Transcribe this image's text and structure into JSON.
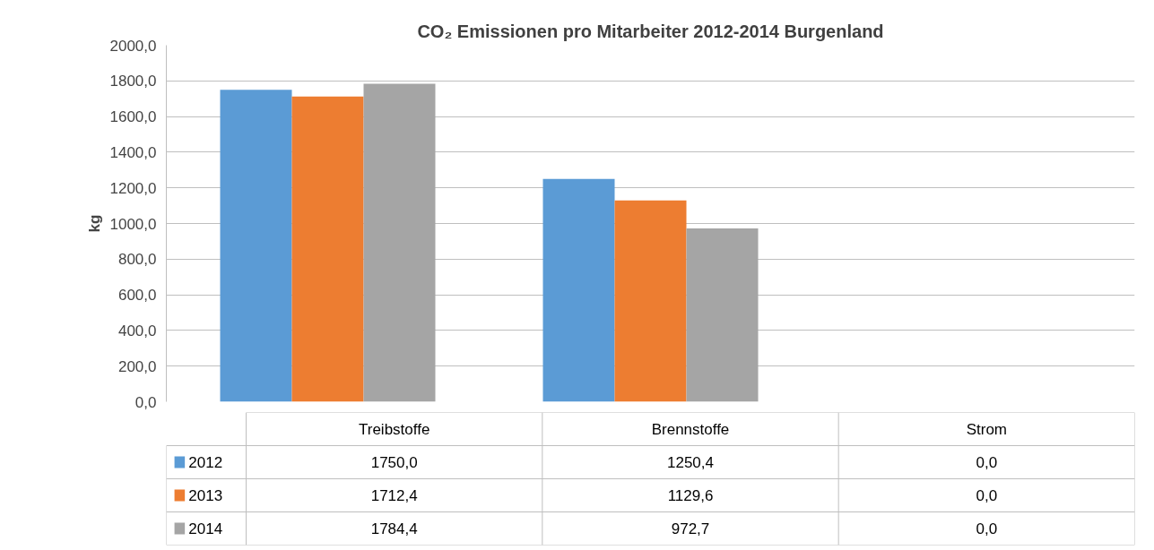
{
  "chart_data": {
    "type": "bar",
    "title": "CO₂ Emissionen pro Mitarbeiter 2012-2014 Burgenland",
    "ylabel": "kg",
    "categories": [
      "Treibstoffe",
      "Brennstoffe",
      "Strom"
    ],
    "series": [
      {
        "name": "2012",
        "color": "#5b9bd5",
        "values": [
          1750.0,
          1250.4,
          0.0
        ],
        "value_labels": [
          "1750,0",
          "1250,4",
          "0,0"
        ]
      },
      {
        "name": "2013",
        "color": "#ed7d31",
        "values": [
          1712.4,
          1129.6,
          0.0
        ],
        "value_labels": [
          "1712,4",
          "1129,6",
          "0,0"
        ]
      },
      {
        "name": "2014",
        "color": "#a5a5a5",
        "values": [
          1784.4,
          972.7,
          0.0
        ],
        "value_labels": [
          "1784,4",
          "972,7",
          "0,0"
        ]
      }
    ],
    "ylim": [
      0,
      2000
    ],
    "yticks": [
      {
        "value": 0,
        "label": "0,0"
      },
      {
        "value": 200,
        "label": "200,0"
      },
      {
        "value": 400,
        "label": "400,0"
      },
      {
        "value": 600,
        "label": "600,0"
      },
      {
        "value": 800,
        "label": "800,0"
      },
      {
        "value": 1000,
        "label": "1000,0"
      },
      {
        "value": 1200,
        "label": "1200,0"
      },
      {
        "value": 1400,
        "label": "1400,0"
      },
      {
        "value": 1600,
        "label": "1600,0"
      },
      {
        "value": 1800,
        "label": "1800,0"
      },
      {
        "value": 2000,
        "label": "2000,0"
      }
    ],
    "grid": "y",
    "legend": "bottom left"
  }
}
